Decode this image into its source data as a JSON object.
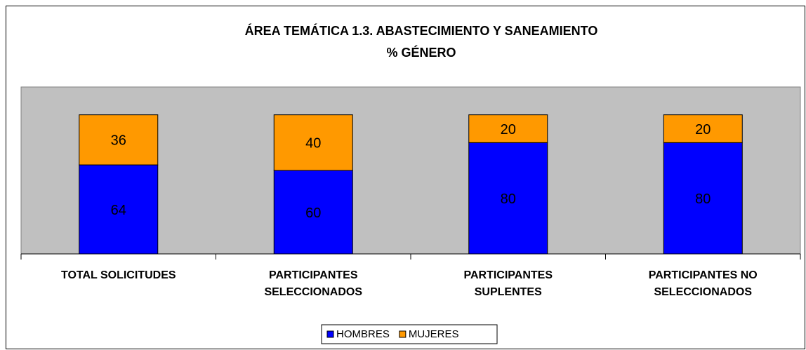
{
  "chart_data": {
    "type": "stacked_bar",
    "title": "ÁREA TEMÁTICA 1.3. ABASTECIMIENTO Y SANEAMIENTO",
    "subtitle": "% GÉNERO",
    "categories": [
      "TOTAL SOLICITUDES",
      "PARTICIPANTES\nSELECCIONADOS",
      "PARTICIPANTES\nSUPLENTES",
      "PARTICIPANTES NO\nSELECCIONADOS"
    ],
    "series": [
      {
        "name": "HOMBRES",
        "color": "#0000FF",
        "values": [
          64,
          60,
          80,
          80
        ]
      },
      {
        "name": "MUJERES",
        "color": "#FF9900",
        "values": [
          36,
          40,
          20,
          20
        ]
      }
    ],
    "ylim": [
      0,
      120
    ],
    "legend": "bottom",
    "plot_background": "#C0C0C0"
  }
}
